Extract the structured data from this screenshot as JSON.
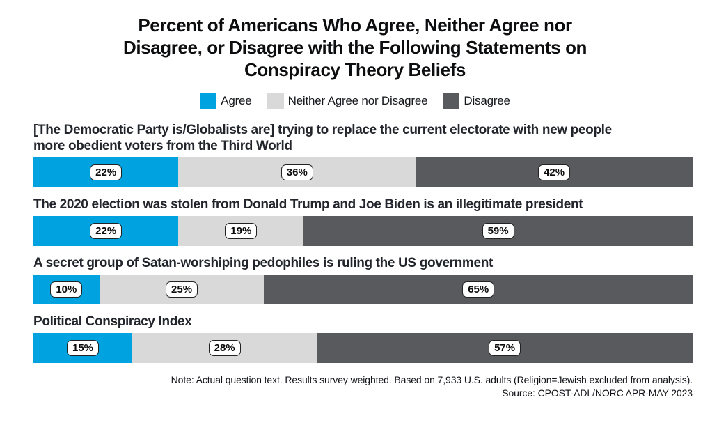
{
  "title": {
    "lines": [
      "Percent of Americans Who Agree, Neither Agree nor",
      "Disagree, or Disagree with the Following Statements on",
      "Conspiracy Theory Beliefs"
    ]
  },
  "colors": {
    "agree": "#00a2e0",
    "neither": "#d9d9d9",
    "disagree": "#595a5e"
  },
  "legend": {
    "items": [
      {
        "label": "Agree",
        "color": "#00a2e0"
      },
      {
        "label": "Neither Agree nor Disagree",
        "color": "#d9d9d9"
      },
      {
        "label": "Disagree",
        "color": "#595a5e"
      }
    ]
  },
  "chart_data": {
    "type": "bar",
    "variant": "horizontal-stacked",
    "title": "Percent of Americans Who Agree, Neither Agree nor Disagree, or Disagree with the Following Statements on Conspiracy Theory Beliefs",
    "unit": "%",
    "xlim": [
      0,
      100
    ],
    "legend_position": "top",
    "categories": [
      "[The Democratic Party is/Globalists are] trying to replace the current electorate with new people more obedient voters from the Third World",
      "The 2020 election was stolen from Donald Trump and Joe Biden is an illegitimate president",
      "A secret group of Satan-worshiping pedophiles is ruling the US government",
      "Political Conspiracy Index"
    ],
    "series": [
      {
        "name": "Agree",
        "color": "#00a2e0",
        "values": [
          22,
          22,
          10,
          15
        ]
      },
      {
        "name": "Neither Agree nor Disagree",
        "color": "#d9d9d9",
        "values": [
          36,
          19,
          25,
          28
        ]
      },
      {
        "name": "Disagree",
        "color": "#595a5e",
        "values": [
          42,
          59,
          65,
          57
        ]
      }
    ]
  },
  "rows": [
    {
      "label_lines": [
        "[The Democratic Party is/Globalists are] trying to replace the current electorate with new people",
        "more obedient voters from the Third World"
      ],
      "segments": [
        {
          "label": "22%",
          "value": 22,
          "color": "#00a2e0"
        },
        {
          "label": "36%",
          "value": 36,
          "color": "#d9d9d9"
        },
        {
          "label": "42%",
          "value": 42,
          "color": "#595a5e"
        }
      ]
    },
    {
      "label_lines": [
        "The 2020 election was stolen from Donald Trump and Joe Biden is an illegitimate president"
      ],
      "segments": [
        {
          "label": "22%",
          "value": 22,
          "color": "#00a2e0"
        },
        {
          "label": "19%",
          "value": 19,
          "color": "#d9d9d9"
        },
        {
          "label": "59%",
          "value": 59,
          "color": "#595a5e"
        }
      ]
    },
    {
      "label_lines": [
        "A secret group of Satan-worshiping pedophiles is ruling the US government"
      ],
      "segments": [
        {
          "label": "10%",
          "value": 10,
          "color": "#00a2e0"
        },
        {
          "label": "25%",
          "value": 25,
          "color": "#d9d9d9"
        },
        {
          "label": "65%",
          "value": 65,
          "color": "#595a5e"
        }
      ]
    },
    {
      "label_lines": [
        "Political Conspiracy Index"
      ],
      "segments": [
        {
          "label": "15%",
          "value": 15,
          "color": "#00a2e0"
        },
        {
          "label": "28%",
          "value": 28,
          "color": "#d9d9d9"
        },
        {
          "label": "57%",
          "value": 57,
          "color": "#595a5e"
        }
      ]
    }
  ],
  "footer": {
    "note": "Note: Actual question text. Results survey weighted. Based on 7,933 U.S. adults (Religion=Jewish excluded from analysis).",
    "source": "Source: CPOST-ADL/NORC APR-MAY 2023"
  }
}
